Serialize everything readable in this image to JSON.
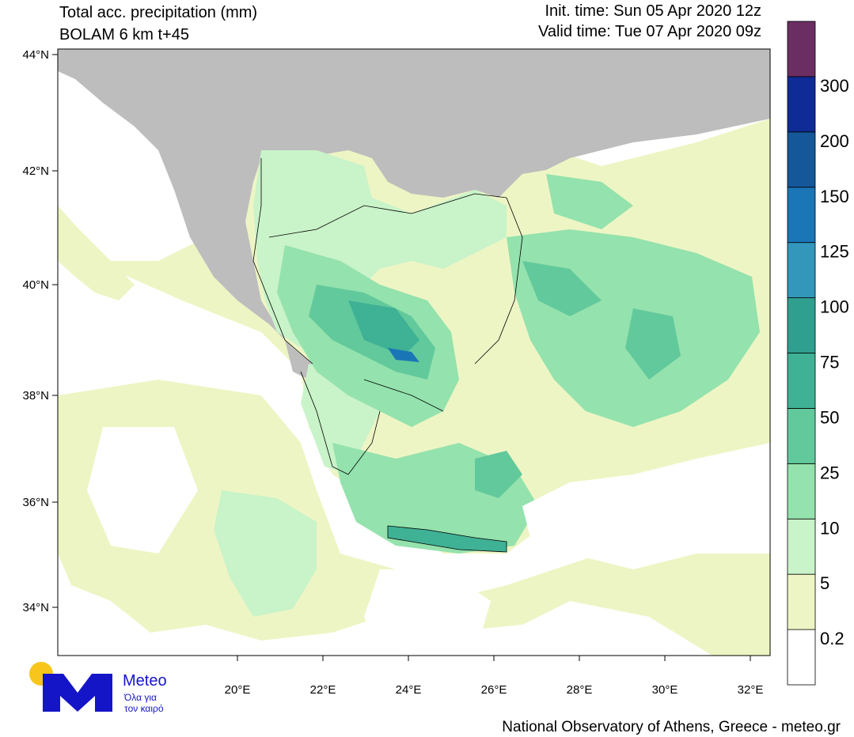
{
  "header": {
    "title": "Total acc. precipitation (mm)",
    "subtitle": "BOLAM 6 km t+45",
    "init_time": "Init. time: Sun 05 Apr 2020 12z",
    "valid_time": "Valid time: Tue 07 Apr 2020 09z"
  },
  "map": {
    "lat_labels": [
      "44°N",
      "42°N",
      "40°N",
      "38°N",
      "36°N",
      "34°N"
    ],
    "lon_labels": [
      "20°E",
      "22°E",
      "24°E",
      "26°E",
      "28°E",
      "30°E",
      "32°E"
    ]
  },
  "legend": {
    "levels": [
      "0.2",
      "5",
      "10",
      "25",
      "50",
      "75",
      "100",
      "125",
      "150",
      "200",
      "300"
    ],
    "colors": [
      "#ffffff",
      "#eef5c4",
      "#c9f3c9",
      "#94e2ad",
      "#62c99c",
      "#3fb195",
      "#2fa08f",
      "#3297bb",
      "#1a76b6",
      "#15589a",
      "#0f2c96",
      "#6b2e62"
    ]
  },
  "logo": {
    "name": "Meteo",
    "tagline_1": "Όλα για",
    "tagline_2": "τον καιρό"
  },
  "footer": "National Observatory of Athens, Greece - meteo.gr"
}
